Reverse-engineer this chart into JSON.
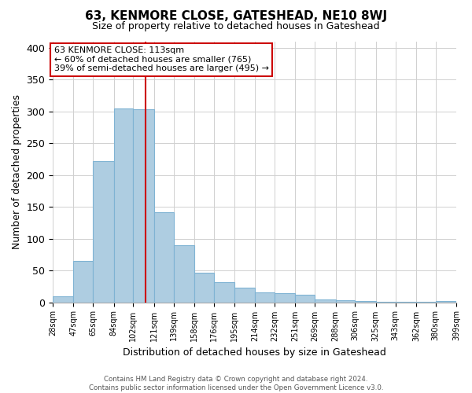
{
  "title": "63, KENMORE CLOSE, GATESHEAD, NE10 8WJ",
  "subtitle": "Size of property relative to detached houses in Gateshead",
  "xlabel": "Distribution of detached houses by size in Gateshead",
  "ylabel": "Number of detached properties",
  "bar_edges": [
    28,
    47,
    65,
    84,
    102,
    121,
    139,
    158,
    176,
    195,
    214,
    232,
    251,
    269,
    288,
    306,
    325,
    343,
    362,
    380,
    399
  ],
  "bar_heights": [
    9,
    65,
    222,
    305,
    303,
    141,
    89,
    46,
    31,
    23,
    16,
    14,
    12,
    4,
    3,
    2,
    1,
    1,
    1,
    2
  ],
  "bar_color": "#aecde1",
  "bar_edgecolor": "#7fb3d3",
  "vline_x": 113,
  "vline_color": "#cc0000",
  "ylim": [
    0,
    410
  ],
  "xlim": [
    28,
    399
  ],
  "annotation_title": "63 KENMORE CLOSE: 113sqm",
  "annotation_line1": "← 60% of detached houses are smaller (765)",
  "annotation_line2": "39% of semi-detached houses are larger (495) →",
  "annotation_box_color": "#ffffff",
  "annotation_box_edgecolor": "#cc0000",
  "tick_labels": [
    "28sqm",
    "47sqm",
    "65sqm",
    "84sqm",
    "102sqm",
    "121sqm",
    "139sqm",
    "158sqm",
    "176sqm",
    "195sqm",
    "214sqm",
    "232sqm",
    "251sqm",
    "269sqm",
    "288sqm",
    "306sqm",
    "325sqm",
    "343sqm",
    "362sqm",
    "380sqm",
    "399sqm"
  ],
  "yticks": [
    0,
    50,
    100,
    150,
    200,
    250,
    300,
    350,
    400
  ],
  "footer_line1": "Contains HM Land Registry data © Crown copyright and database right 2024.",
  "footer_line2": "Contains public sector information licensed under the Open Government Licence v3.0.",
  "background_color": "#ffffff",
  "grid_color": "#d0d0d0",
  "title_fontsize": 11,
  "subtitle_fontsize": 9,
  "ylabel_fontsize": 9,
  "xlabel_fontsize": 9,
  "annotation_fontsize": 8
}
